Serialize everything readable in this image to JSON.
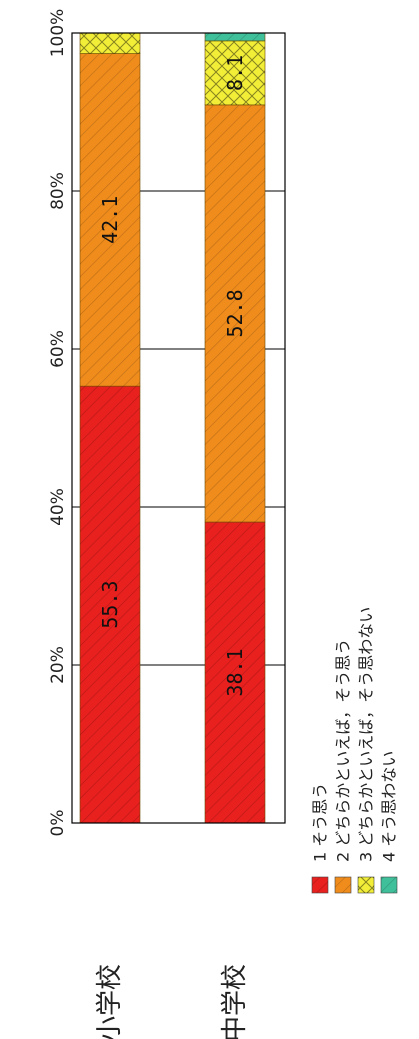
{
  "chart_data": {
    "type": "bar",
    "orientation": "horizontal-stacked-percent",
    "categories": [
      "小学校",
      "中学校"
    ],
    "series": [
      {
        "name": "1 そう思う",
        "values": [
          55.3,
          38.1
        ],
        "color": "#e8201e",
        "pattern": "diagonal"
      },
      {
        "name": "2 どちらかといえば，そう思う",
        "values": [
          42.1,
          52.8
        ],
        "color": "#f08c1c",
        "pattern": "diagonal"
      },
      {
        "name": "3 どちらかといえば，そう思わない",
        "values": [
          2.6,
          8.1
        ],
        "color": "#f2ee38",
        "pattern": "crosshatch"
      },
      {
        "name": "4 そう思わない",
        "values": [
          0.0,
          1.0
        ],
        "color": "#3fbf9a",
        "pattern": "diagonal"
      }
    ],
    "data_labels": [
      {
        "category": "小学校",
        "series": 0,
        "text": "55.3"
      },
      {
        "category": "小学校",
        "series": 1,
        "text": "42.1"
      },
      {
        "category": "中学校",
        "series": 0,
        "text": "38.1"
      },
      {
        "category": "中学校",
        "series": 1,
        "text": "52.8"
      },
      {
        "category": "中学校",
        "series": 2,
        "text": "8.1"
      }
    ],
    "axis": {
      "ticks": [
        0,
        20,
        40,
        60,
        80,
        100
      ],
      "tick_labels": [
        "0%",
        "20%",
        "40%",
        "60%",
        "80%",
        "100%"
      ],
      "range": [
        0,
        100
      ]
    },
    "grid": true,
    "legend_position": "bottom",
    "title": "",
    "xlabel": "",
    "ylabel": ""
  }
}
